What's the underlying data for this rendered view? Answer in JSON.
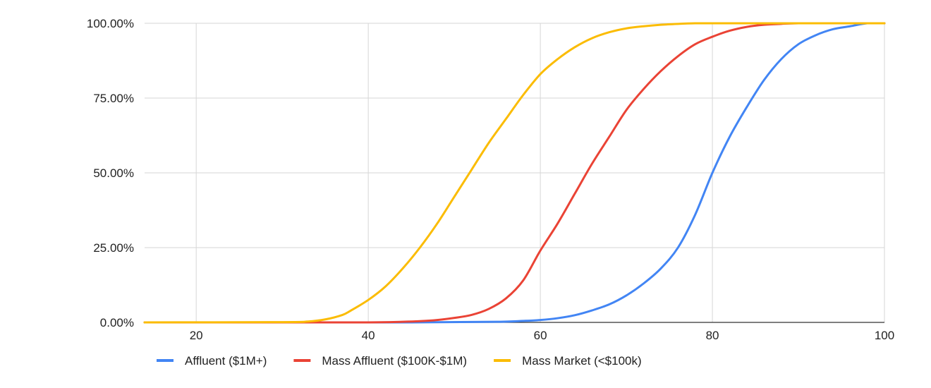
{
  "chart_data": {
    "type": "line",
    "title": "",
    "xlabel": "",
    "ylabel": "",
    "xlim": [
      14,
      100
    ],
    "ylim": [
      0,
      1
    ],
    "x_ticks": [
      20,
      40,
      60,
      80,
      100
    ],
    "x_tick_labels": [
      "20",
      "40",
      "60",
      "80",
      "100"
    ],
    "y_ticks": [
      0,
      0.25,
      0.5,
      0.75,
      1
    ],
    "y_tick_labels": [
      "0.00%",
      "25.00%",
      "50.00%",
      "75.00%",
      "100.00%"
    ],
    "grid": true,
    "legend_position": "bottom",
    "series": [
      {
        "name": "Affluent ($1M+)",
        "color": "#4285F4",
        "x": [
          14,
          30,
          45,
          55,
          58,
          60,
          62,
          64,
          66,
          68,
          70,
          72,
          74,
          76,
          78,
          80,
          82,
          84,
          86,
          88,
          90,
          92,
          94,
          96,
          98,
          100
        ],
        "y": [
          0,
          0,
          0,
          0.002,
          0.005,
          0.008,
          0.014,
          0.024,
          0.04,
          0.06,
          0.09,
          0.13,
          0.18,
          0.25,
          0.36,
          0.5,
          0.62,
          0.72,
          0.81,
          0.88,
          0.93,
          0.96,
          0.98,
          0.99,
          1,
          1
        ]
      },
      {
        "name": "Mass Affluent ($100K-$1M)",
        "color": "#EA4335",
        "x": [
          14,
          30,
          40,
          44,
          46,
          48,
          50,
          52,
          54,
          56,
          58,
          60,
          62,
          64,
          66,
          68,
          70,
          72,
          74,
          76,
          78,
          80,
          82,
          84,
          86,
          88,
          90,
          95,
          100
        ],
        "y": [
          0,
          0,
          0,
          0.002,
          0.004,
          0.008,
          0.015,
          0.025,
          0.045,
          0.08,
          0.14,
          0.24,
          0.33,
          0.43,
          0.53,
          0.62,
          0.71,
          0.78,
          0.84,
          0.89,
          0.93,
          0.955,
          0.975,
          0.988,
          0.995,
          0.998,
          1,
          1,
          1
        ]
      },
      {
        "name": "Mass Market (<$100k)",
        "color": "#FBBC04",
        "x": [
          14,
          30,
          33,
          35,
          37,
          38,
          40,
          42,
          44,
          46,
          48,
          50,
          52,
          54,
          56,
          58,
          60,
          62,
          64,
          66,
          68,
          70,
          72,
          74,
          76,
          78,
          80,
          90,
          100
        ],
        "y": [
          0,
          0.001,
          0.003,
          0.01,
          0.025,
          0.04,
          0.075,
          0.12,
          0.18,
          0.25,
          0.33,
          0.42,
          0.51,
          0.6,
          0.68,
          0.76,
          0.83,
          0.88,
          0.92,
          0.95,
          0.97,
          0.983,
          0.99,
          0.995,
          0.998,
          1,
          1,
          1,
          1
        ]
      }
    ]
  }
}
